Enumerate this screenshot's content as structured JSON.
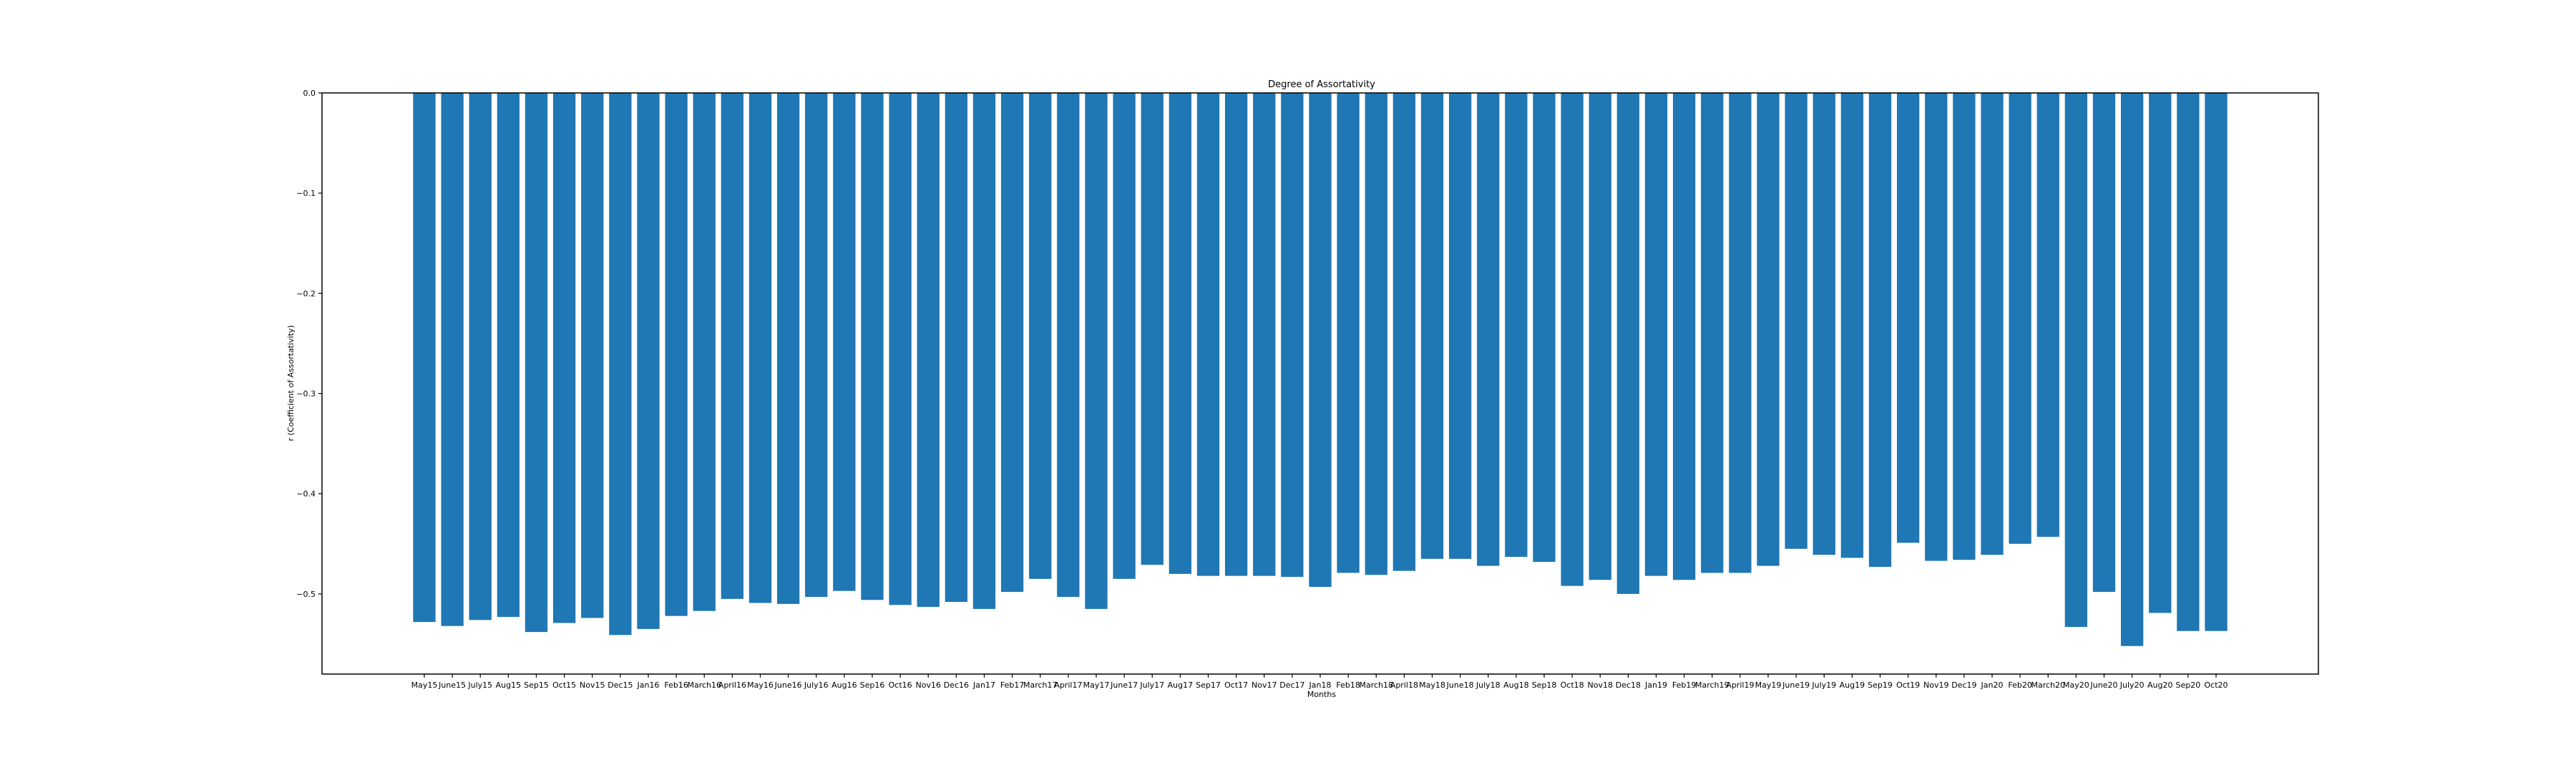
{
  "chart_data": {
    "type": "bar",
    "title": "Degree of Assortativity",
    "xlabel": "Months",
    "ylabel": "r (Coefficient of Assortativity)",
    "ylim": [
      -0.58,
      0.0
    ],
    "yticks": [
      0.0,
      -0.1,
      -0.2,
      -0.3,
      -0.4,
      -0.5
    ],
    "ytick_labels": [
      "0.0",
      "−0.1",
      "−0.2",
      "−0.3",
      "−0.4",
      "−0.5"
    ],
    "bar_color": "#1f77b4",
    "categories": [
      "May15",
      "June15",
      "July15",
      "Aug15",
      "Sep15",
      "Oct15",
      "Nov15",
      "Dec15",
      "Jan16",
      "Feb16",
      "March16",
      "April16",
      "May16",
      "June16",
      "July16",
      "Aug16",
      "Sep16",
      "Oct16",
      "Nov16",
      "Dec16",
      "Jan17",
      "Feb17",
      "March17",
      "April17",
      "May17",
      "June17",
      "July17",
      "Aug17",
      "Sep17",
      "Oct17",
      "Nov17",
      "Dec17",
      "Jan18",
      "Feb18",
      "March18",
      "April18",
      "May18",
      "June18",
      "July18",
      "Aug18",
      "Sep18",
      "Oct18",
      "Nov18",
      "Dec18",
      "Jan19",
      "Feb19",
      "March19",
      "April19",
      "May19",
      "June19",
      "July19",
      "Aug19",
      "Sep19",
      "Oct19",
      "Nov19",
      "Dec19",
      "Jan20",
      "Feb20",
      "March20",
      "May20",
      "June20",
      "July20",
      "Aug20",
      "Sep20",
      "Oct20"
    ],
    "values": [
      -0.528,
      -0.532,
      -0.526,
      -0.523,
      -0.538,
      -0.529,
      -0.524,
      -0.541,
      -0.535,
      -0.522,
      -0.517,
      -0.505,
      -0.509,
      -0.51,
      -0.503,
      -0.497,
      -0.506,
      -0.511,
      -0.513,
      -0.508,
      -0.515,
      -0.498,
      -0.485,
      -0.503,
      -0.515,
      -0.485,
      -0.471,
      -0.48,
      -0.482,
      -0.482,
      -0.482,
      -0.483,
      -0.493,
      -0.479,
      -0.481,
      -0.477,
      -0.465,
      -0.465,
      -0.472,
      -0.463,
      -0.468,
      -0.492,
      -0.486,
      -0.5,
      -0.482,
      -0.486,
      -0.479,
      -0.479,
      -0.472,
      -0.455,
      -0.461,
      -0.464,
      -0.473,
      -0.449,
      -0.467,
      -0.466,
      -0.461,
      -0.45,
      -0.443,
      -0.533,
      -0.498,
      -0.552,
      -0.519,
      -0.537,
      -0.537
    ]
  }
}
